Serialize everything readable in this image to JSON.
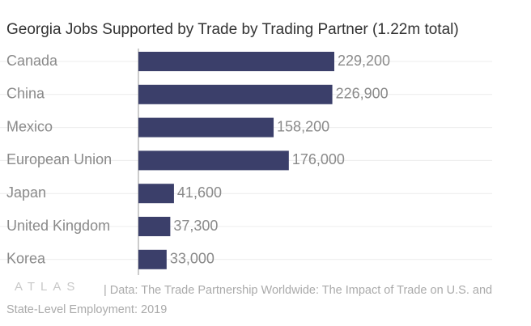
{
  "chart_data": {
    "type": "bar",
    "orientation": "horizontal",
    "title": "Georgia Jobs Supported by Trade by Trading Partner (1.22m total)",
    "categories": [
      "Canada",
      "China",
      "Mexico",
      "European Union",
      "Japan",
      "United Kingdom",
      "Korea"
    ],
    "values": [
      229200,
      226900,
      158200,
      176000,
      41600,
      37300,
      33000
    ],
    "value_labels": [
      "229,200",
      "226,900",
      "158,200",
      "176,000",
      "41,600",
      "37,300",
      "33,000"
    ],
    "color": "#3b3f6a",
    "grid": true
  },
  "logo": "ATLAS",
  "source": "| Data: The Trade Partnership Worldwide: The Impact of Trade on U.S. and State-Level Employment: 2019"
}
